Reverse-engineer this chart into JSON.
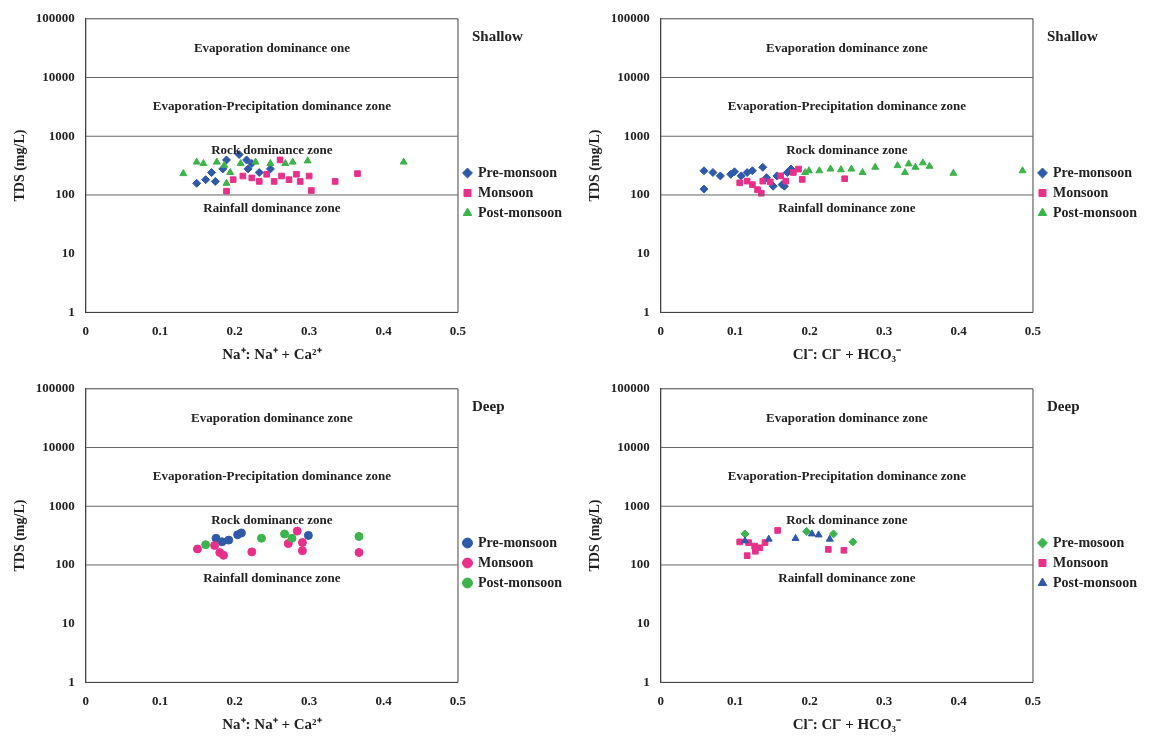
{
  "chart_data": [
    {
      "type": "scatter",
      "xlabel": "Na⁺: Na⁺ + Ca²⁺",
      "ylabel": "TDS (mg/L)",
      "log": "y",
      "xlim": [
        0,
        0.5
      ],
      "xticks": [
        0,
        0.1,
        0.2,
        0.3,
        0.4,
        0.5
      ],
      "ylim": [
        1,
        100000
      ],
      "yticks": [
        1,
        10,
        100,
        1000,
        10000,
        100000
      ],
      "grid": false,
      "legend": "right",
      "ref_lines": [
        {
          "axis": "y",
          "value": 10000
        },
        {
          "axis": "y",
          "value": 1000
        },
        {
          "axis": "y",
          "value": 100
        }
      ],
      "annotations": [
        "Evaporation dominance one",
        "Evaporation-Precipitation dominance zone",
        "Rock dominance zone",
        "Rainfall dominance zone",
        "Shallow"
      ],
      "series": [
        {
          "name": "Pre-monsoon",
          "color": "#2f5aa8",
          "marker": "diamond",
          "x": [
            0.149,
            0.161,
            0.169,
            0.174,
            0.184,
            0.189,
            0.206,
            0.216,
            0.218,
            0.233,
            0.223,
            0.248
          ],
          "values": [
            158,
            182,
            241,
            170,
            278,
            395,
            488,
            395,
            278,
            241,
            343,
            278
          ]
        },
        {
          "name": "Monsoon",
          "color": "#e8308a",
          "marker": "square",
          "x": [
            0.189,
            0.198,
            0.211,
            0.223,
            0.233,
            0.243,
            0.253,
            0.263,
            0.273,
            0.283,
            0.288,
            0.3,
            0.303,
            0.261,
            0.335,
            0.365
          ],
          "values": [
            116,
            182,
            210,
            195,
            170,
            225,
            170,
            210,
            182,
            225,
            170,
            210,
            119,
            395,
            170,
            231
          ]
        },
        {
          "name": "Post-monsoon",
          "color": "#3cb44b",
          "marker": "triangle",
          "x": [
            0.131,
            0.149,
            0.158,
            0.176,
            0.186,
            0.194,
            0.208,
            0.228,
            0.248,
            0.268,
            0.278,
            0.298,
            0.427,
            0.189
          ],
          "values": [
            231,
            363,
            343,
            363,
            320,
            241,
            343,
            363,
            343,
            343,
            363,
            380,
            363,
            158
          ]
        }
      ]
    },
    {
      "type": "scatter",
      "xlabel": "Cl⁻: Cl⁻ + HCO₃⁻",
      "ylabel": "TDS (mg/L)",
      "log": "y",
      "xlim": [
        0,
        0.5
      ],
      "xticks": [
        0,
        0.1,
        0.2,
        0.3,
        0.4,
        0.5
      ],
      "ylim": [
        1,
        100000
      ],
      "yticks": [
        1,
        10,
        100,
        1000,
        10000,
        100000
      ],
      "grid": false,
      "legend": "right",
      "ref_lines": [
        {
          "axis": "y",
          "value": 10000
        },
        {
          "axis": "y",
          "value": 1000
        },
        {
          "axis": "y",
          "value": 100
        }
      ],
      "annotations": [
        "Evaporation dominance zone",
        "Evaporation-Precipitation dominance zone",
        "Rock dominance zone",
        "Rainfall dominance zone",
        "Shallow"
      ],
      "series": [
        {
          "name": "Pre-monsoon",
          "color": "#2f5aa8",
          "marker": "diamond",
          "x": [
            0.058,
            0.058,
            0.07,
            0.08,
            0.094,
            0.099,
            0.108,
            0.116,
            0.123,
            0.137,
            0.142,
            0.151,
            0.156,
            0.163,
            0.17,
            0.175,
            0.166
          ],
          "values": [
            258,
            126,
            241,
            211,
            225,
            248,
            211,
            241,
            258,
            296,
            197,
            141,
            211,
            150,
            241,
            276,
            141
          ]
        },
        {
          "name": "Monsoon",
          "color": "#e8308a",
          "marker": "square",
          "x": [
            0.106,
            0.116,
            0.123,
            0.13,
            0.135,
            0.137,
            0.147,
            0.161,
            0.168,
            0.178,
            0.185,
            0.19,
            0.247
          ],
          "values": [
            161,
            172,
            150,
            123,
            107,
            172,
            167,
            211,
            172,
            241,
            276,
            184,
            189
          ]
        },
        {
          "name": "Post-monsoon",
          "color": "#3cb44b",
          "marker": "triangle",
          "x": [
            0.194,
            0.199,
            0.213,
            0.228,
            0.242,
            0.256,
            0.271,
            0.288,
            0.318,
            0.328,
            0.333,
            0.342,
            0.352,
            0.361,
            0.393,
            0.486
          ],
          "values": [
            241,
            258,
            258,
            276,
            269,
            276,
            241,
            296,
            316,
            241,
            338,
            296,
            352,
            308,
            234,
            258
          ]
        }
      ]
    },
    {
      "type": "scatter",
      "xlabel": "Na⁺: Na⁺ + Ca²⁺",
      "ylabel": "TDS (mg/L)",
      "log": "y",
      "xlim": [
        0,
        0.5
      ],
      "xticks": [
        0,
        0.1,
        0.2,
        0.3,
        0.4,
        0.5
      ],
      "ylim": [
        1,
        100000
      ],
      "yticks": [
        1,
        10,
        100,
        1000,
        10000,
        100000
      ],
      "grid": false,
      "legend": "right",
      "ref_lines": [
        {
          "axis": "y",
          "value": 10000
        },
        {
          "axis": "y",
          "value": 1000
        },
        {
          "axis": "y",
          "value": 100
        }
      ],
      "annotations": [
        "Evaporation dominance zone",
        "Evaporation-Precipitation dominance zone",
        "Rock dominance zone",
        "Rainfall dominance zone",
        "Deep"
      ],
      "series": [
        {
          "name": "Pre-monsoon",
          "color": "#2f5aa8",
          "marker": "circle",
          "x": [
            0.175,
            0.183,
            0.192,
            0.204,
            0.209,
            0.299
          ],
          "values": [
            285,
            248,
            265,
            327,
            351,
            319
          ]
        },
        {
          "name": "Monsoon",
          "color": "#e8308a",
          "marker": "circle",
          "x": [
            0.15,
            0.173,
            0.18,
            0.185,
            0.223,
            0.284,
            0.272,
            0.291,
            0.291,
            0.367
          ],
          "values": [
            187,
            215,
            163,
            146,
            167,
            377,
            231,
            241,
            175,
            163
          ]
        },
        {
          "name": "Post-monsoon",
          "color": "#3cb44b",
          "marker": "circle",
          "x": [
            0.161,
            0.236,
            0.267,
            0.277,
            0.367
          ],
          "values": [
            221,
            285,
            337,
            285,
            306
          ]
        }
      ]
    },
    {
      "type": "scatter",
      "xlabel": "Cl⁻: Cl⁻ + HCO₃⁻",
      "ylabel": "TDS (mg/L)",
      "log": "y",
      "xlim": [
        0,
        0.5
      ],
      "xticks": [
        0,
        0.1,
        0.2,
        0.3,
        0.4,
        0.5
      ],
      "ylim": [
        1,
        100000
      ],
      "yticks": [
        1,
        10,
        100,
        1000,
        10000,
        100000
      ],
      "grid": false,
      "legend": "right",
      "ref_lines": [
        {
          "axis": "y",
          "value": 10000
        },
        {
          "axis": "y",
          "value": 1000
        },
        {
          "axis": "y",
          "value": 100
        }
      ],
      "annotations": [
        "Evaporation dominance zone",
        "Evaporation-Precipitation dominance zone",
        "Rock dominance zone",
        "Rainfall dominance zone",
        "Deep"
      ],
      "series": [
        {
          "name": "Pre-mosoon",
          "color": "#3cb44b",
          "marker": "diamond",
          "x": [
            0.113,
            0.196,
            0.232,
            0.258
          ],
          "values": [
            338,
            372,
            338,
            247
          ]
        },
        {
          "name": "Monsoon",
          "color": "#e8308a",
          "marker": "square",
          "x": [
            0.106,
            0.118,
            0.126,
            0.133,
            0.116,
            0.127,
            0.14,
            0.157,
            0.225,
            0.246
          ],
          "values": [
            247,
            240,
            210,
            196,
            144,
            171,
            240,
            387,
            184,
            178
          ]
        },
        {
          "name": "Post-monsoon",
          "color": "#2f5aa8",
          "marker": "triangle",
          "x": [
            0.113,
            0.145,
            0.181,
            0.203,
            0.212,
            0.227
          ],
          "values": [
            257,
            275,
            283,
            338,
            325,
            275
          ]
        }
      ]
    }
  ]
}
